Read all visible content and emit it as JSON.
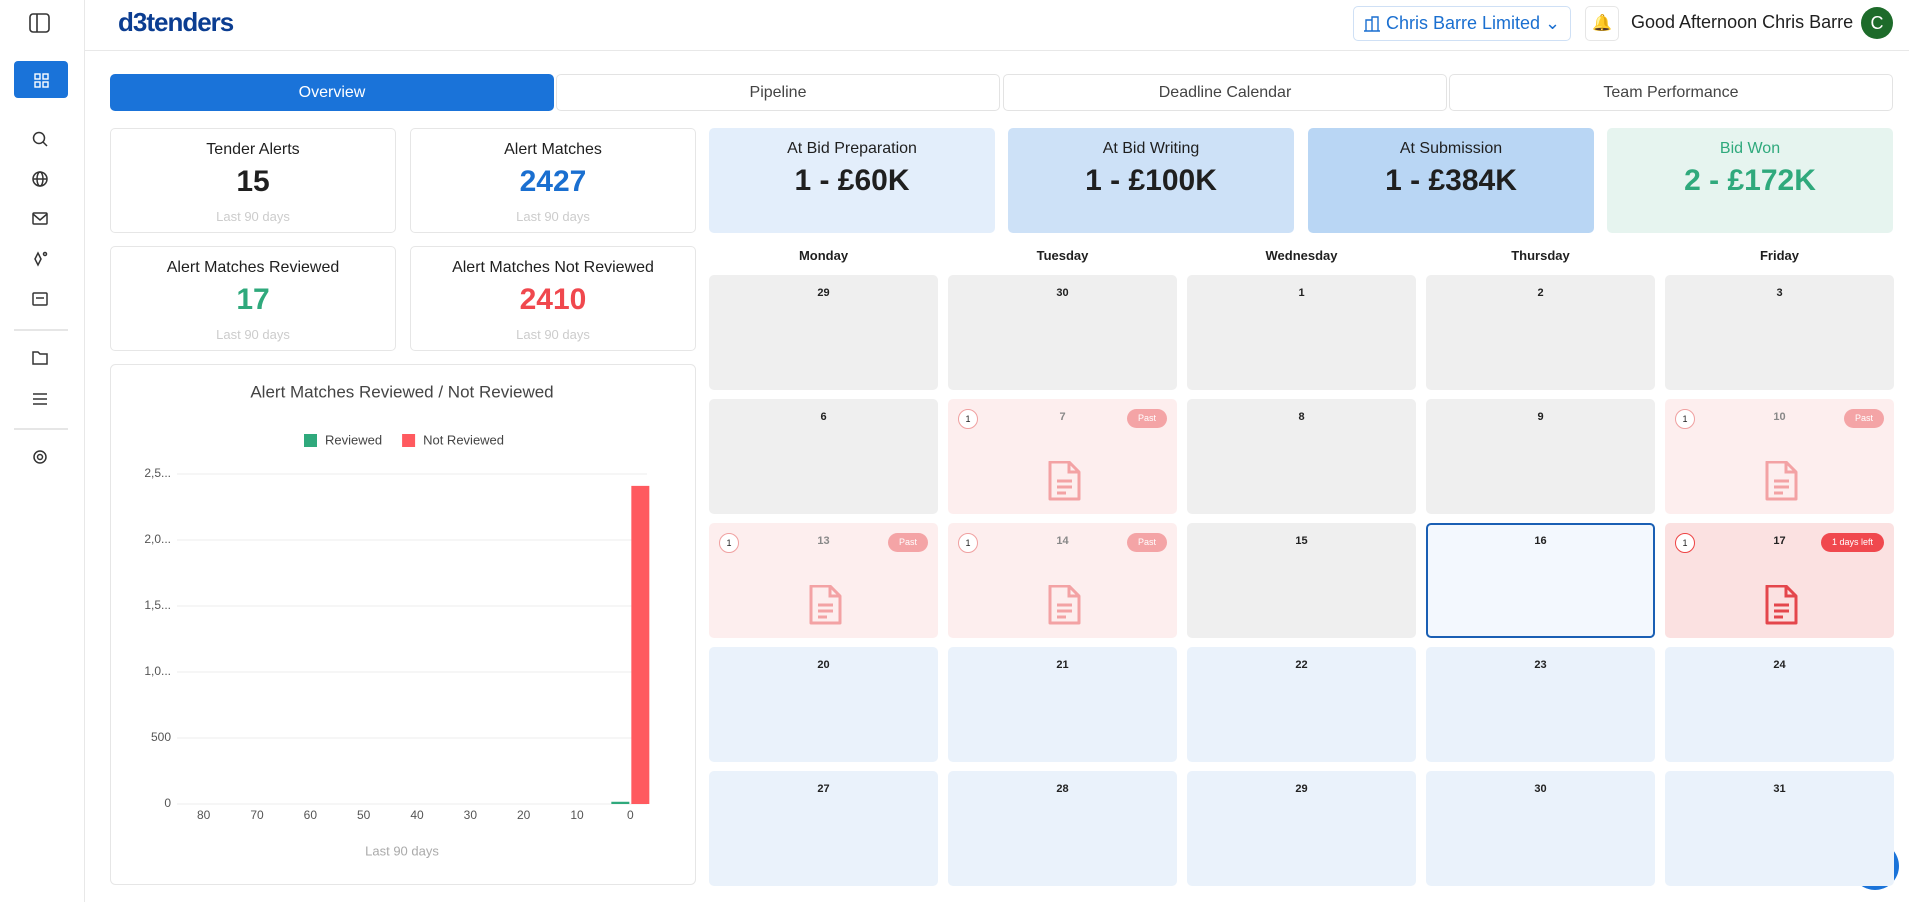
{
  "header": {
    "logo": "d3tenders",
    "company": "Chris Barre Limited",
    "greeting": "Good Afternoon Chris Barre",
    "avatar": "C"
  },
  "tabs": [
    {
      "label": "Overview",
      "active": true
    },
    {
      "label": "Pipeline",
      "active": false
    },
    {
      "label": "Deadline Calendar",
      "active": false
    },
    {
      "label": "Team Performance",
      "active": false
    }
  ],
  "stats": [
    {
      "title": "Tender Alerts",
      "value": 15,
      "caption": "Last 90 days",
      "color": "#1f1f1f"
    },
    {
      "title": "Alert Matches",
      "value": 2427,
      "caption": "Last 90 days",
      "color": "#1a6fd0"
    },
    {
      "title": "Alert Matches Reviewed",
      "value": 17,
      "caption": "Last 90 days",
      "color": "#2fa97c"
    },
    {
      "title": "Alert Matches Not Reviewed",
      "value": 2410,
      "caption": "Last 90 days",
      "color": "#f0484e"
    }
  ],
  "pipeline": [
    {
      "title": "At Bid Preparation",
      "value": "1 - £60K",
      "bg": "#e3eefb",
      "color": "#1f1f1f"
    },
    {
      "title": "At Bid Writing",
      "value": "1 - £100K",
      "bg": "#cde1f7",
      "color": "#1f1f1f"
    },
    {
      "title": "At Submission",
      "value": "1 - £384K",
      "bg": "#b9d6f4",
      "color": "#1f1f1f"
    },
    {
      "title": "Bid Won",
      "value": "2 - £172K",
      "bg": "#e6f4ef",
      "color": "#2fa97c"
    }
  ],
  "calendar": {
    "weekdays": [
      "Monday",
      "Tuesday",
      "Wednesday",
      "Thursday",
      "Friday"
    ],
    "weeks": [
      [
        {
          "day": "29",
          "status": "other"
        },
        {
          "day": "30",
          "status": "other"
        },
        {
          "day": "1",
          "status": "other"
        },
        {
          "day": "2",
          "status": "other"
        },
        {
          "day": "3",
          "status": "other"
        }
      ],
      [
        {
          "day": "6",
          "status": "other"
        },
        {
          "day": "7",
          "status": "past",
          "count": "1",
          "badge": "Past"
        },
        {
          "day": "8",
          "status": "other"
        },
        {
          "day": "9",
          "status": "other"
        },
        {
          "day": "10",
          "status": "past",
          "count": "1",
          "badge": "Past"
        }
      ],
      [
        {
          "day": "13",
          "status": "past",
          "count": "1",
          "badge": "Past"
        },
        {
          "day": "14",
          "status": "past",
          "count": "1",
          "badge": "Past"
        },
        {
          "day": "15",
          "status": "other"
        },
        {
          "day": "16",
          "status": "today"
        },
        {
          "day": "17",
          "status": "due",
          "count": "1",
          "badge": "1 days left"
        }
      ],
      [
        {
          "day": "20",
          "status": "future"
        },
        {
          "day": "21",
          "status": "future"
        },
        {
          "day": "22",
          "status": "future"
        },
        {
          "day": "23",
          "status": "future"
        },
        {
          "day": "24",
          "status": "future"
        }
      ],
      [
        {
          "day": "27",
          "status": "future"
        },
        {
          "day": "28",
          "status": "future"
        },
        {
          "day": "29",
          "status": "future"
        },
        {
          "day": "30",
          "status": "future"
        },
        {
          "day": "31",
          "status": "future"
        }
      ]
    ]
  },
  "chart_data": {
    "type": "bar",
    "title": "Alert Matches Reviewed / Not Reviewed",
    "x_label": "Last 90 days",
    "categories": [
      "80",
      "70",
      "60",
      "50",
      "40",
      "30",
      "20",
      "10",
      "0"
    ],
    "series": [
      {
        "name": "Reviewed",
        "color": "#2fa97c",
        "values": [
          0,
          0,
          0,
          0,
          0,
          0,
          0,
          0,
          17
        ]
      },
      {
        "name": "Not Reviewed",
        "color": "#ff5a5f",
        "values": [
          0,
          0,
          0,
          0,
          0,
          0,
          0,
          0,
          2410
        ]
      }
    ],
    "ylim": [
      0,
      2500
    ],
    "yticks": [
      0,
      500,
      {
        "value": 1000,
        "label": "1,0..."
      },
      {
        "value": 1500,
        "label": "1,5..."
      },
      {
        "value": 2000,
        "label": "2,0..."
      },
      {
        "value": 2500,
        "label": "2,5..."
      }
    ],
    "grid": true,
    "legend": "top"
  }
}
